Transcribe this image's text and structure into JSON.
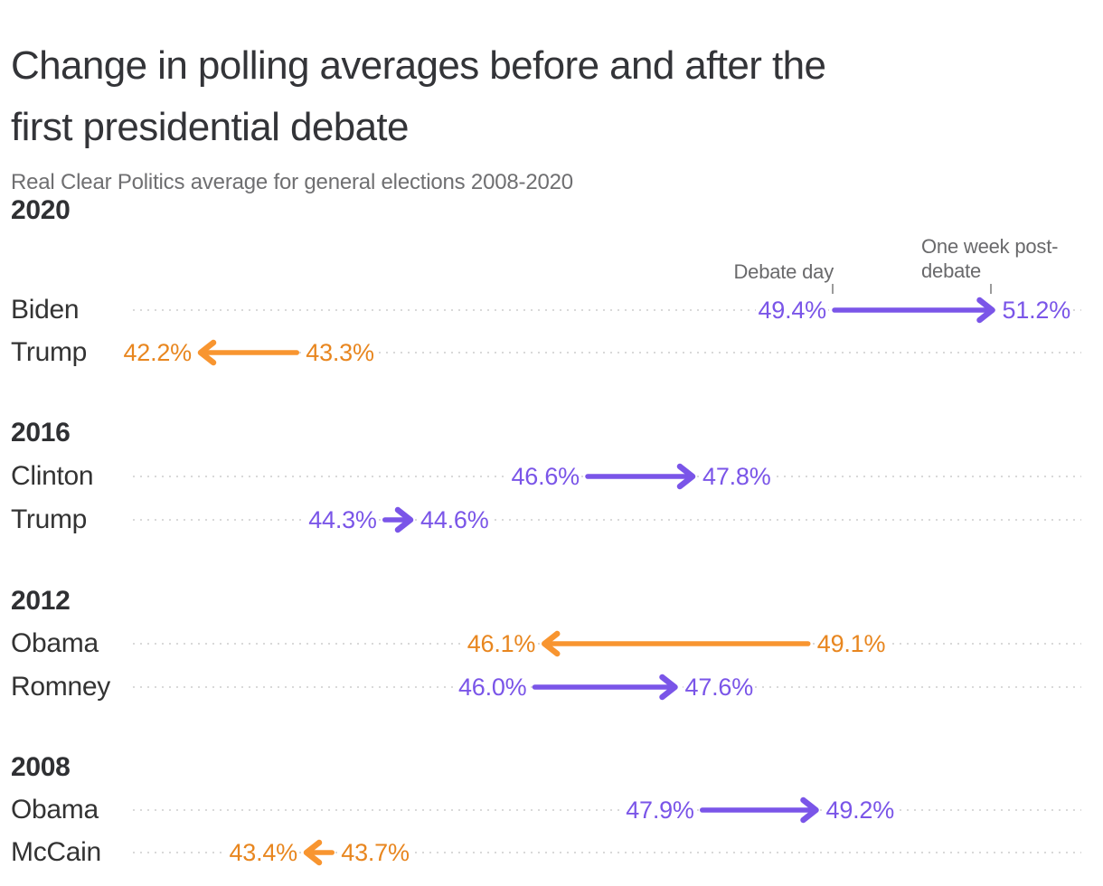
{
  "header": {
    "title_line1": "Change in polling averages before and after the",
    "title_line2": "first presidential debate",
    "subtitle": "Real Clear Politics average for general elections 2008-2020"
  },
  "annotations": {
    "debate_day": "Debate day",
    "post_debate_line1": "One week post-",
    "post_debate_line2": "debate"
  },
  "colors": {
    "purple": "#7a55e8",
    "orange_arrow": "#f89530",
    "orange_text": "#e8861f",
    "dark_text": "#333333",
    "muted_text": "#6f6f71",
    "leader_dots": "#d9d9d9",
    "tick": "#9b9b9b"
  },
  "chart_data": {
    "type": "arrow-change",
    "title": "Change in polling averages before and after the first presidential debate",
    "subtitle": "Real Clear Politics average for general elections 2008-2020",
    "unit": "%",
    "value_axis_range": [
      40,
      52
    ],
    "grid": "dotted-row-leaders",
    "legend_annotations": [
      "Debate day",
      "One week post-debate"
    ],
    "annotation_marker_values": {
      "debate_day": 49.4,
      "one_week_post_debate": 51.2
    },
    "sections": [
      {
        "year": "2020",
        "rows": [
          {
            "candidate": "Biden",
            "before": 49.4,
            "after": 51.2,
            "change": 1.8,
            "color": "purple"
          },
          {
            "candidate": "Trump",
            "before": 43.3,
            "after": 42.2,
            "change": -1.1,
            "color": "orange"
          }
        ]
      },
      {
        "year": "2016",
        "rows": [
          {
            "candidate": "Clinton",
            "before": 46.6,
            "after": 47.8,
            "change": 1.2,
            "color": "purple"
          },
          {
            "candidate": "Trump",
            "before": 44.3,
            "after": 44.6,
            "change": 0.3,
            "color": "purple"
          }
        ]
      },
      {
        "year": "2012",
        "rows": [
          {
            "candidate": "Obama",
            "before": 49.1,
            "after": 46.1,
            "change": -3.0,
            "color": "orange"
          },
          {
            "candidate": "Romney",
            "before": 46.0,
            "after": 47.6,
            "change": 1.6,
            "color": "purple"
          }
        ]
      },
      {
        "year": "2008",
        "rows": [
          {
            "candidate": "Obama",
            "before": 47.9,
            "after": 49.2,
            "change": 1.3,
            "color": "purple"
          },
          {
            "candidate": "McCain",
            "before": 43.7,
            "after": 43.4,
            "change": -0.3,
            "color": "orange"
          }
        ]
      }
    ]
  }
}
